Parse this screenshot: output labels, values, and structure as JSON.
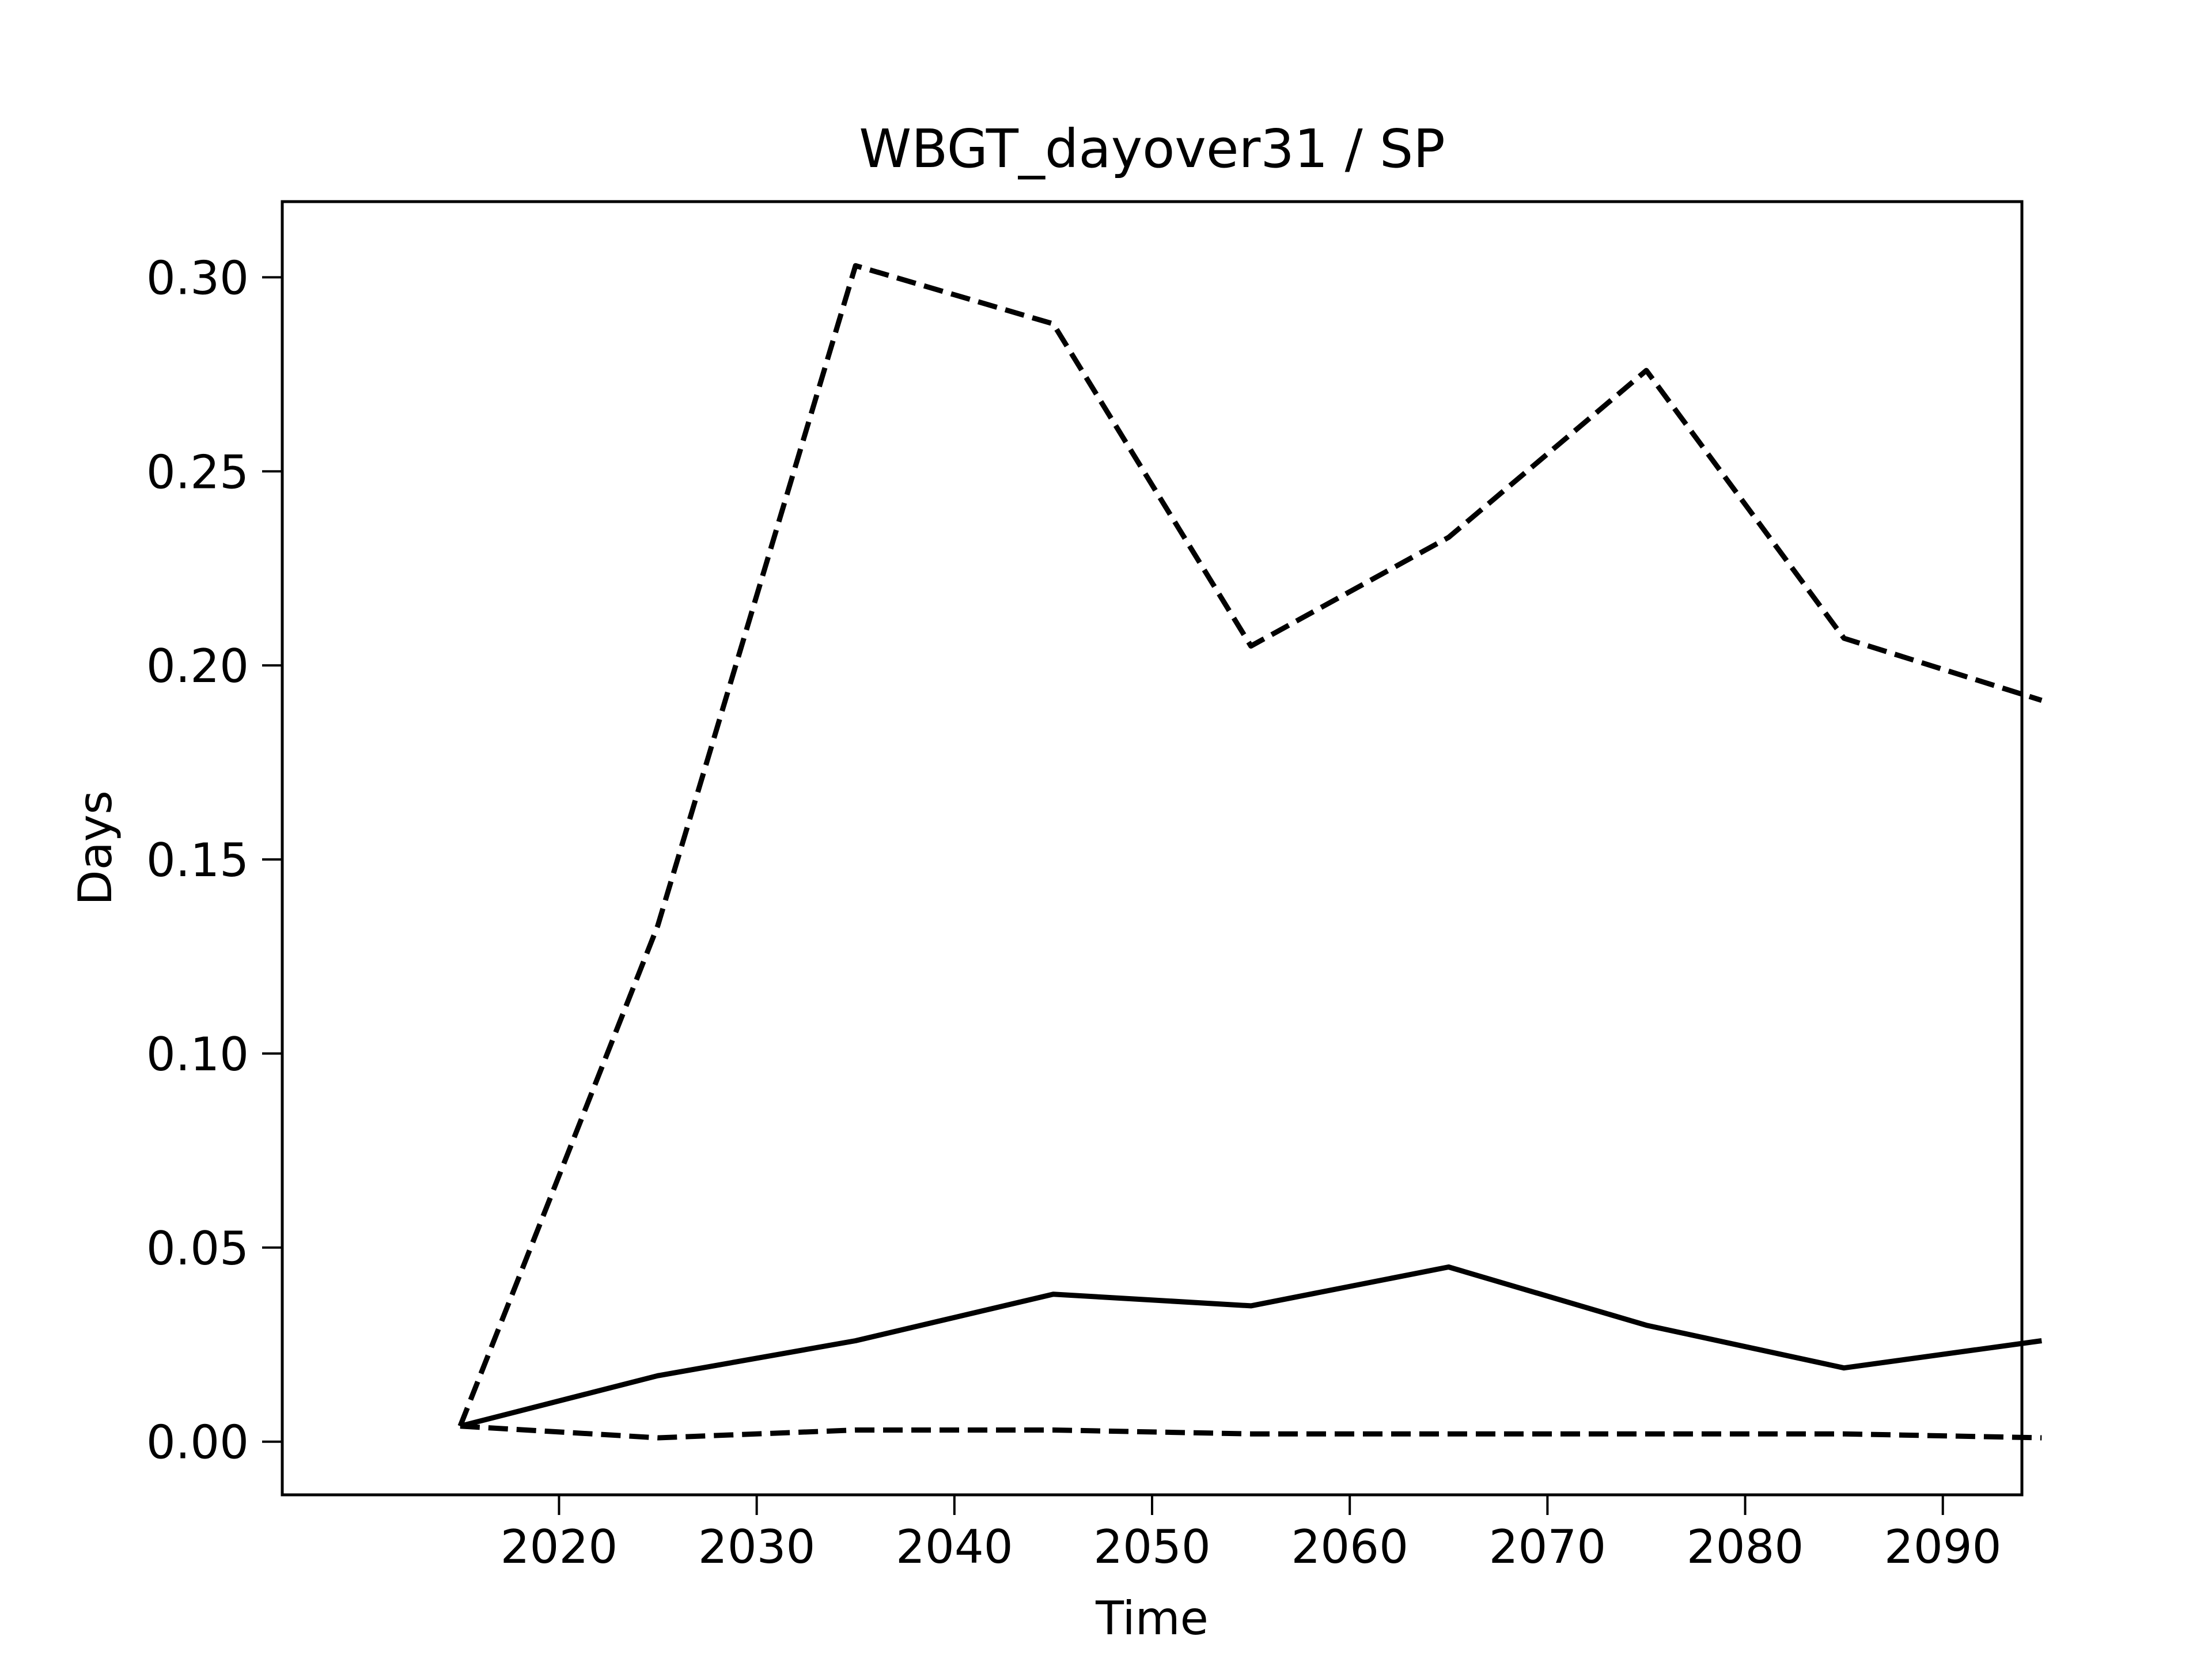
{
  "chart_data": {
    "type": "line",
    "title": "WBGT_dayover31 / SP",
    "xlabel": "Time",
    "ylabel": "Days",
    "x": [
      2015,
      2025,
      2035,
      2045,
      2055,
      2065,
      2075,
      2085,
      2095
    ],
    "xlim": [
      2006,
      2094
    ],
    "ylim": [
      -0.0137,
      0.3195
    ],
    "xticks": [
      2020,
      2030,
      2040,
      2050,
      2060,
      2070,
      2080,
      2090
    ],
    "xtick_labels": [
      "2020",
      "2030",
      "2040",
      "2050",
      "2060",
      "2070",
      "2080",
      "2090"
    ],
    "yticks": [
      0.0,
      0.05,
      0.1,
      0.15,
      0.2,
      0.25,
      0.3
    ],
    "ytick_labels": [
      "0.00",
      "0.05",
      "0.10",
      "0.15",
      "0.20",
      "0.25",
      "0.30"
    ],
    "grid": false,
    "legend": "none",
    "series": [
      {
        "style": "dashed",
        "color": "#000000",
        "values": [
          0.004,
          0.133,
          0.303,
          0.288,
          0.205,
          0.233,
          0.276,
          0.207,
          0.191
        ]
      },
      {
        "style": "solid",
        "color": "#000000",
        "values": [
          0.004,
          0.017,
          0.026,
          0.038,
          0.035,
          0.045,
          0.03,
          0.019,
          0.026
        ]
      },
      {
        "style": "dashed",
        "color": "#000000",
        "values": [
          0.004,
          0.001,
          0.003,
          0.003,
          0.002,
          0.002,
          0.002,
          0.002,
          0.001
        ]
      }
    ]
  }
}
